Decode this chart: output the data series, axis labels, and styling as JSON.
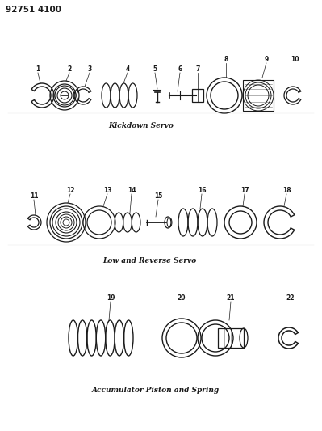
{
  "title_code": "92751 4100",
  "bg_color": "#ffffff",
  "line_color": "#1a1a1a",
  "section1_label": "Kickdown Servo",
  "section2_label": "Low and Reverse Servo",
  "section3_label": "Accumulator Piston and Spring",
  "fig_width": 3.99,
  "fig_height": 5.33,
  "dpi": 100
}
